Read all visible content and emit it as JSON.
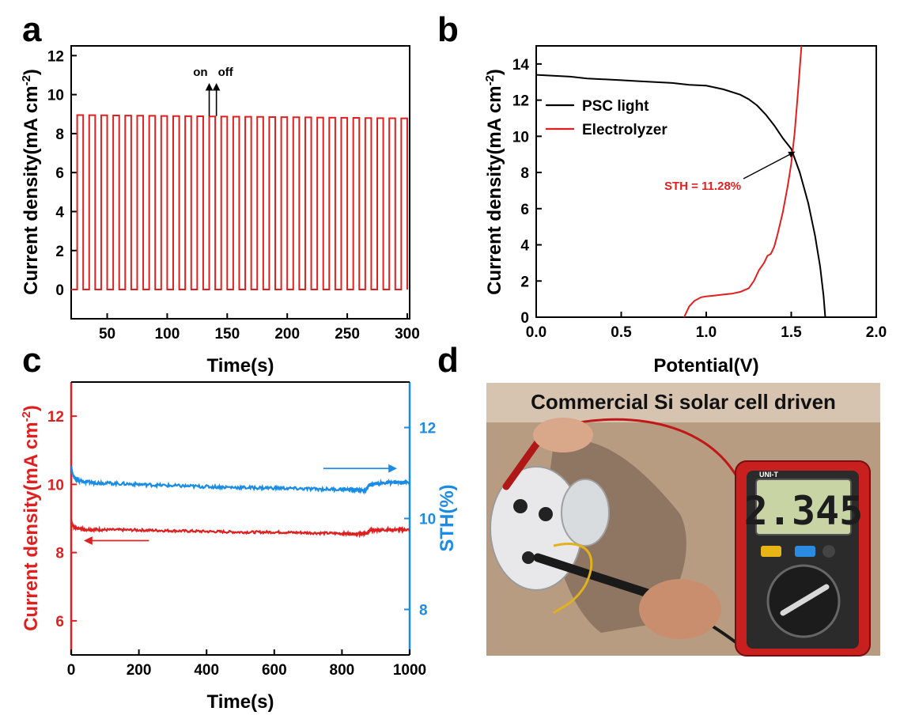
{
  "chart_data": [
    {
      "panel": "a",
      "type": "line",
      "xlabel": "Time(s)",
      "ylabel": "Current density(mA cm",
      "ylabel_sup": "-2",
      "ylabel_close": ")",
      "xlim": [
        20,
        302
      ],
      "ylim": [
        -1.5,
        12.5
      ],
      "xticks": [
        50,
        100,
        150,
        200,
        250,
        300
      ],
      "yticks": [
        0,
        2,
        4,
        6,
        8,
        10,
        12
      ],
      "annotations": {
        "on": "on",
        "off": "off",
        "on_x": 135,
        "off_x": 141,
        "arrow_from_y": 8.9,
        "arrow_to_y": 10.4
      },
      "series": [
        {
          "name": "on/off cycling",
          "color": "#e02020",
          "pulse": {
            "start": 25,
            "period": 10,
            "on_duration": 5,
            "on_value_start": 8.95,
            "on_value_end": 8.78,
            "off_value": 0,
            "end": 300
          }
        }
      ]
    },
    {
      "panel": "b",
      "type": "line",
      "xlabel": "Potential(V)",
      "ylabel": "Current density(mA cm",
      "ylabel_sup": "-2",
      "ylabel_close": ")",
      "xlim": [
        0.0,
        2.0
      ],
      "ylim": [
        0,
        15
      ],
      "xticks": [
        "0.0",
        "0.5",
        "1.0",
        "1.5",
        "2.0"
      ],
      "yticks": [
        0,
        2,
        4,
        6,
        8,
        10,
        12,
        14
      ],
      "legend": [
        {
          "label": "PSC light",
          "color": "#000000"
        },
        {
          "label": "Electrolyzer",
          "color": "#e02020"
        }
      ],
      "annotation": {
        "text": "STH = 11.28%",
        "point_x": 1.52,
        "point_y": 9.2
      },
      "series": [
        {
          "name": "PSC light",
          "color": "#000000",
          "x": [
            0.0,
            0.1,
            0.2,
            0.3,
            0.4,
            0.5,
            0.6,
            0.7,
            0.8,
            0.9,
            1.0,
            1.1,
            1.2,
            1.25,
            1.3,
            1.35,
            1.4,
            1.45,
            1.5,
            1.55,
            1.6,
            1.64,
            1.67,
            1.69,
            1.7
          ],
          "y": [
            13.4,
            13.35,
            13.3,
            13.2,
            13.15,
            13.1,
            13.05,
            13.0,
            12.95,
            12.85,
            12.8,
            12.6,
            12.3,
            12.05,
            11.7,
            11.2,
            10.6,
            9.9,
            9.3,
            8.0,
            6.3,
            4.5,
            2.8,
            1.2,
            0.0
          ]
        },
        {
          "name": "Electrolyzer",
          "color": "#e02020",
          "x": [
            0.87,
            0.9,
            0.93,
            0.97,
            1.0,
            1.05,
            1.1,
            1.15,
            1.2,
            1.25,
            1.28,
            1.31,
            1.34,
            1.36,
            1.38,
            1.4,
            1.42,
            1.45,
            1.48,
            1.5,
            1.52,
            1.54,
            1.56
          ],
          "y": [
            0.0,
            0.6,
            0.9,
            1.1,
            1.15,
            1.2,
            1.25,
            1.3,
            1.4,
            1.6,
            2.0,
            2.6,
            3.0,
            3.4,
            3.5,
            3.9,
            4.6,
            5.8,
            7.3,
            8.5,
            10.2,
            12.5,
            15.0
          ]
        }
      ]
    },
    {
      "panel": "c",
      "type": "line",
      "xlabel": "Time(s)",
      "ylabel": "Current density(mA cm",
      "ylabel_sup": "-2",
      "ylabel_close": ")",
      "y2label": "STH(%)",
      "xlim": [
        0,
        1000
      ],
      "ylim": [
        5.0,
        13.0
      ],
      "y2lim": [
        7.0,
        13.0
      ],
      "xticks": [
        0,
        200,
        400,
        600,
        800,
        1000
      ],
      "yticks": [
        6,
        8,
        10,
        12
      ],
      "y2ticks": [
        8,
        10,
        12
      ],
      "series": [
        {
          "name": "Current density",
          "axis": "left",
          "color": "#e02020",
          "x": [
            0,
            5,
            15,
            40,
            100,
            200,
            300,
            400,
            500,
            600,
            700,
            800,
            850,
            870,
            880,
            900,
            950,
            1000
          ],
          "y": [
            8.95,
            8.78,
            8.72,
            8.68,
            8.67,
            8.66,
            8.64,
            8.62,
            8.6,
            8.6,
            8.58,
            8.56,
            8.55,
            8.55,
            8.64,
            8.66,
            8.67,
            8.67
          ]
        },
        {
          "name": "STH",
          "axis": "right",
          "color": "#1a8ce8",
          "x": [
            0,
            5,
            15,
            40,
            100,
            200,
            300,
            400,
            500,
            600,
            700,
            800,
            850,
            870,
            880,
            900,
            950,
            1000
          ],
          "y": [
            11.15,
            10.95,
            10.85,
            10.8,
            10.78,
            10.75,
            10.72,
            10.7,
            10.68,
            10.67,
            10.65,
            10.64,
            10.63,
            10.62,
            10.74,
            10.77,
            10.79,
            10.8
          ]
        }
      ],
      "arrows": [
        {
          "direction": "left",
          "axis": "left",
          "color": "#e02020",
          "x_from": 230,
          "x_to": 50,
          "y": 8.35
        },
        {
          "direction": "right",
          "axis": "right",
          "color": "#1a8ce8",
          "x_from": 745,
          "x_to": 950,
          "y": 11.1
        }
      ]
    }
  ],
  "panel_letters": {
    "a": "a",
    "b": "b",
    "c": "c",
    "d": "d"
  },
  "photo": {
    "title": "Commercial Si solar cell driven",
    "meter_reading": "2.345",
    "meter_brand": "UNI-T"
  },
  "colors": {
    "red": "#e02020",
    "blue": "#1a8ce8",
    "black": "#000000"
  }
}
